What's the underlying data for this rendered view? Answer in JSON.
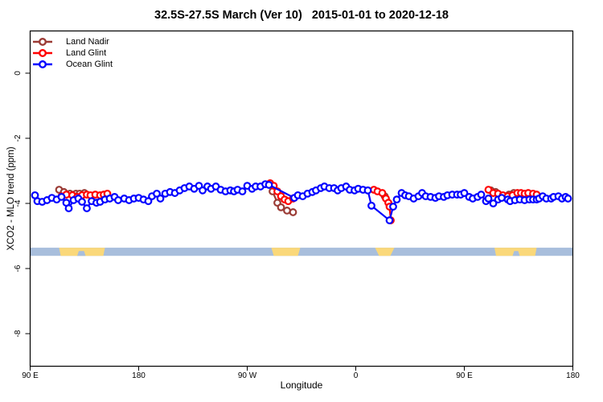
{
  "title": "32.5S-27.5S March (Ver 10)   2015-01-01 to 2020-12-18",
  "chart_data": {
    "type": "line",
    "title": "32.5S-27.5S March (Ver 10)   2015-01-01 to 2020-12-18",
    "xlabel": "Longitude",
    "ylabel": "XCO2 - MLO trend (ppm)",
    "x_axis": {
      "note": "x values are degrees of longitude measured eastward from the left edge (90 E); axis wraps 90E-180-90W-0-90E-180",
      "range": [
        0,
        450
      ],
      "ticks": [
        0,
        90,
        180,
        270,
        360,
        450
      ],
      "tick_labels": [
        "90 E",
        "180",
        "90 W",
        "0",
        "90 E",
        "180"
      ]
    },
    "y_axis": {
      "range": [
        1.3,
        -9.0
      ],
      "ticks": [
        0,
        -2,
        -4,
        -6,
        -8
      ],
      "tick_labels": [
        "0",
        "-2",
        "-4",
        "-6",
        "-8"
      ]
    },
    "legend_position": "top-left",
    "grid": false,
    "marker": "open-circle",
    "series": [
      {
        "name": "Land Nadir",
        "color": "#9B3B35",
        "clusters": [
          [
            [
              24,
              -3.58
            ],
            [
              28,
              -3.65
            ],
            [
              33,
              -3.7
            ],
            [
              38,
              -3.7
            ],
            [
              41,
              -3.7
            ],
            [
              45,
              -3.68
            ]
          ],
          [
            [
              201,
              -3.63
            ],
            [
              205,
              -3.98
            ],
            [
              208,
              -4.12
            ],
            [
              213,
              -4.22
            ],
            [
              218,
              -4.27
            ]
          ],
          [
            [
              294,
              -3.78
            ]
          ],
          [
            [
              382,
              -3.6
            ],
            [
              386,
              -3.65
            ],
            [
              397,
              -3.73
            ],
            [
              401,
              -3.68
            ]
          ]
        ]
      },
      {
        "name": "Land Glint",
        "color": "#FF0000",
        "clusters": [
          [
            [
              26,
              -3.78
            ],
            [
              30,
              -3.73
            ],
            [
              35,
              -3.75
            ],
            [
              39,
              -3.8
            ],
            [
              43,
              -3.75
            ],
            [
              47,
              -3.73
            ],
            [
              50,
              -3.75
            ],
            [
              54,
              -3.73
            ],
            [
              58,
              -3.75
            ],
            [
              61,
              -3.73
            ],
            [
              64,
              -3.7
            ]
          ],
          [
            [
              199,
              -3.38
            ],
            [
              202,
              -3.46
            ],
            [
              205,
              -3.63
            ],
            [
              208,
              -3.78
            ],
            [
              211,
              -3.88
            ],
            [
              214,
              -3.93
            ],
            [
              218,
              -3.85
            ]
          ],
          [
            [
              285,
              -3.58
            ],
            [
              288,
              -3.63
            ],
            [
              292,
              -3.68
            ],
            [
              295,
              -3.85
            ],
            [
              297,
              -3.98
            ],
            [
              298,
              -4.1
            ],
            [
              299,
              -4.52
            ]
          ],
          [
            [
              380,
              -3.58
            ],
            [
              384,
              -3.68
            ],
            [
              388,
              -3.7
            ],
            [
              392,
              -3.75
            ],
            [
              396,
              -3.78
            ],
            [
              400,
              -3.75
            ],
            [
              404,
              -3.68
            ],
            [
              407,
              -3.68
            ],
            [
              410,
              -3.7
            ],
            [
              413,
              -3.68
            ],
            [
              417,
              -3.7
            ],
            [
              420,
              -3.73
            ]
          ]
        ]
      },
      {
        "name": "Ocean Glint",
        "color": "#0000FF",
        "clusters": [
          [
            [
              4,
              -3.75
            ],
            [
              6,
              -3.93
            ],
            [
              10,
              -3.95
            ],
            [
              14,
              -3.9
            ],
            [
              18,
              -3.83
            ],
            [
              22,
              -3.88
            ],
            [
              26,
              -3.8
            ],
            [
              30,
              -3.98
            ],
            [
              32,
              -4.15
            ],
            [
              36,
              -3.9
            ],
            [
              40,
              -3.85
            ],
            [
              43,
              -3.95
            ],
            [
              47,
              -4.15
            ],
            [
              51,
              -3.93
            ],
            [
              55,
              -3.98
            ],
            [
              58,
              -3.95
            ],
            [
              62,
              -3.88
            ],
            [
              66,
              -3.85
            ],
            [
              70,
              -3.8
            ],
            [
              73,
              -3.9
            ],
            [
              78,
              -3.85
            ],
            [
              82,
              -3.9
            ],
            [
              86,
              -3.85
            ],
            [
              90,
              -3.83
            ],
            [
              94,
              -3.88
            ],
            [
              98,
              -3.93
            ],
            [
              101,
              -3.78
            ],
            [
              105,
              -3.7
            ],
            [
              108,
              -3.85
            ],
            [
              112,
              -3.7
            ],
            [
              116,
              -3.65
            ],
            [
              120,
              -3.68
            ],
            [
              124,
              -3.6
            ],
            [
              128,
              -3.53
            ],
            [
              132,
              -3.48
            ],
            [
              136,
              -3.55
            ],
            [
              140,
              -3.46
            ],
            [
              143,
              -3.6
            ],
            [
              147,
              -3.48
            ],
            [
              150,
              -3.55
            ],
            [
              154,
              -3.48
            ],
            [
              158,
              -3.58
            ],
            [
              162,
              -3.63
            ],
            [
              166,
              -3.6
            ],
            [
              169,
              -3.63
            ],
            [
              172,
              -3.58
            ],
            [
              176,
              -3.63
            ],
            [
              180,
              -3.46
            ],
            [
              184,
              -3.55
            ],
            [
              187,
              -3.48
            ],
            [
              191,
              -3.48
            ],
            [
              195,
              -3.41
            ],
            [
              198,
              -3.43
            ],
            [
              219,
              -3.83
            ],
            [
              222,
              -3.75
            ],
            [
              226,
              -3.78
            ],
            [
              230,
              -3.7
            ],
            [
              234,
              -3.65
            ],
            [
              237,
              -3.6
            ],
            [
              241,
              -3.53
            ],
            [
              244,
              -3.48
            ],
            [
              248,
              -3.53
            ],
            [
              252,
              -3.53
            ],
            [
              255,
              -3.6
            ],
            [
              258,
              -3.53
            ],
            [
              262,
              -3.48
            ],
            [
              265,
              -3.58
            ],
            [
              269,
              -3.6
            ],
            [
              272,
              -3.55
            ],
            [
              276,
              -3.58
            ],
            [
              280,
              -3.6
            ],
            [
              283,
              -4.07
            ],
            [
              298,
              -4.52
            ],
            [
              301,
              -4.1
            ],
            [
              304,
              -3.88
            ],
            [
              308,
              -3.68
            ],
            [
              311,
              -3.75
            ],
            [
              314,
              -3.78
            ],
            [
              318,
              -3.85
            ],
            [
              322,
              -3.78
            ],
            [
              325,
              -3.68
            ],
            [
              328,
              -3.78
            ],
            [
              332,
              -3.8
            ],
            [
              336,
              -3.83
            ],
            [
              339,
              -3.78
            ],
            [
              343,
              -3.8
            ],
            [
              346,
              -3.75
            ],
            [
              350,
              -3.73
            ],
            [
              354,
              -3.73
            ],
            [
              357,
              -3.73
            ],
            [
              360,
              -3.68
            ],
            [
              364,
              -3.8
            ],
            [
              367,
              -3.85
            ],
            [
              371,
              -3.8
            ],
            [
              374,
              -3.73
            ],
            [
              378,
              -3.93
            ],
            [
              380,
              -3.85
            ],
            [
              384,
              -4.0
            ],
            [
              388,
              -3.88
            ],
            [
              391,
              -3.83
            ],
            [
              396,
              -3.88
            ],
            [
              398,
              -3.93
            ],
            [
              402,
              -3.9
            ],
            [
              406,
              -3.88
            ],
            [
              410,
              -3.9
            ],
            [
              414,
              -3.88
            ],
            [
              417,
              -3.88
            ],
            [
              420,
              -3.88
            ],
            [
              422,
              -3.85
            ],
            [
              425,
              -3.78
            ],
            [
              428,
              -3.85
            ],
            [
              432,
              -3.85
            ],
            [
              434,
              -3.8
            ],
            [
              438,
              -3.78
            ],
            [
              441,
              -3.85
            ],
            [
              444,
              -3.8
            ],
            [
              446,
              -3.85
            ]
          ]
        ]
      }
    ],
    "land_ocean_strip": {
      "description": "horizontal map strip: ocean=blue, land=yellow",
      "ocean_color": "#A8BEDC",
      "land_color": "#FAD87A",
      "y_ppm": [
        -5.36,
        -5.61
      ],
      "land_blocks": [
        {
          "x1": 24,
          "x2": 62,
          "taper": 2,
          "notch": [
            39,
            46
          ]
        },
        {
          "x1": 200,
          "x2": 224,
          "taper": 3,
          "notch": null
        },
        {
          "x1": 286,
          "x2": 302,
          "taper": 5,
          "notch": null
        },
        {
          "x1": 385,
          "x2": 420,
          "taper": 2,
          "notch": [
            400,
            406
          ]
        }
      ]
    }
  }
}
